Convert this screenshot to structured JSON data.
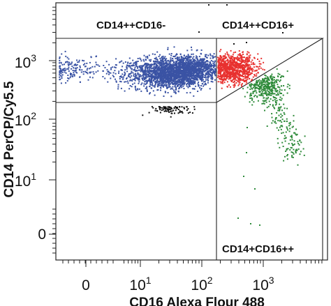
{
  "chart_data": {
    "type": "scatter",
    "title": "",
    "xlabel": "CD16 Alexa Flour 488",
    "ylabel": "CD14 PerCP/Cy5.5",
    "x_scale": "biexponential",
    "y_scale": "biexponential",
    "xlim": [
      -5,
      5000
    ],
    "ylim": [
      -0.3,
      8000
    ],
    "x_ticks": [
      {
        "value": 0,
        "base": "0",
        "exp": ""
      },
      {
        "value": 10,
        "base": "10",
        "exp": "1"
      },
      {
        "value": 100,
        "base": "10",
        "exp": "2"
      },
      {
        "value": 1000,
        "base": "10",
        "exp": "3"
      }
    ],
    "y_ticks": [
      {
        "value": 0,
        "base": "0",
        "exp": ""
      },
      {
        "value": 10,
        "base": "10",
        "exp": "1"
      },
      {
        "value": 100,
        "base": "10",
        "exp": "2"
      },
      {
        "value": 1000,
        "base": "10",
        "exp": "3"
      }
    ],
    "gates": [
      {
        "name": "CD14++CD16-",
        "color": "#3a53a4"
      },
      {
        "name": "CD14++CD16+",
        "color": "#e8312f"
      },
      {
        "name": "CD14+CD16++",
        "color": "#2e8b3a"
      }
    ],
    "ungated_color": "#111111",
    "grid": false,
    "legend": "none"
  }
}
